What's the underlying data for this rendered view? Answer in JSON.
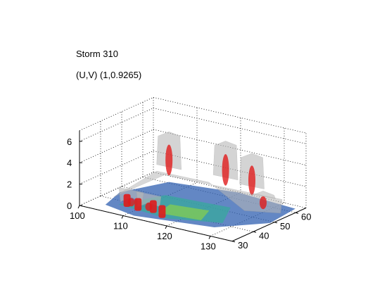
{
  "figure": {
    "title_lines": [
      "Storm 310",
      "(U,V) (1,0.9265)"
    ]
  },
  "chart_data": {
    "type": "3d-isosurface",
    "title": "Storm 310",
    "subtitle": "(U,V) (1,0.9265)",
    "xlabel": "",
    "ylabel": "",
    "zlabel": "",
    "x_ticks": [
      100,
      110,
      120,
      130
    ],
    "y_ticks": [
      30,
      40,
      50,
      60
    ],
    "z_ticks": [
      0,
      2,
      4,
      6
    ],
    "xlim": [
      100,
      135
    ],
    "ylim": [
      30,
      65
    ],
    "zlim": [
      0,
      7
    ],
    "grid": true,
    "legend": "none",
    "surfaces": [
      {
        "color": "#b4b4b4",
        "description_value": "translucent grey envelope"
      },
      {
        "color": "#e41a1c",
        "description_value": "red isosurface cores"
      },
      {
        "color": "#3b6fb6",
        "description_value": "blue-green base contour slice"
      }
    ],
    "peaks": [
      {
        "x": 106,
        "y": 60,
        "z": 4.8
      },
      {
        "x": 118,
        "y": 62,
        "z": 4.9
      },
      {
        "x": 125,
        "y": 60,
        "z": 4.6
      },
      {
        "x": 130,
        "y": 55,
        "z": 2.0
      },
      {
        "x": 108,
        "y": 38,
        "z": 0.8
      },
      {
        "x": 112,
        "y": 38,
        "z": 0.7
      }
    ],
    "colors": {
      "grey": "#b9b9b9",
      "red": "#e01b1b",
      "blue": "#2f5fb0",
      "teal": "#3aa6a0",
      "green": "#7bc85a"
    }
  }
}
